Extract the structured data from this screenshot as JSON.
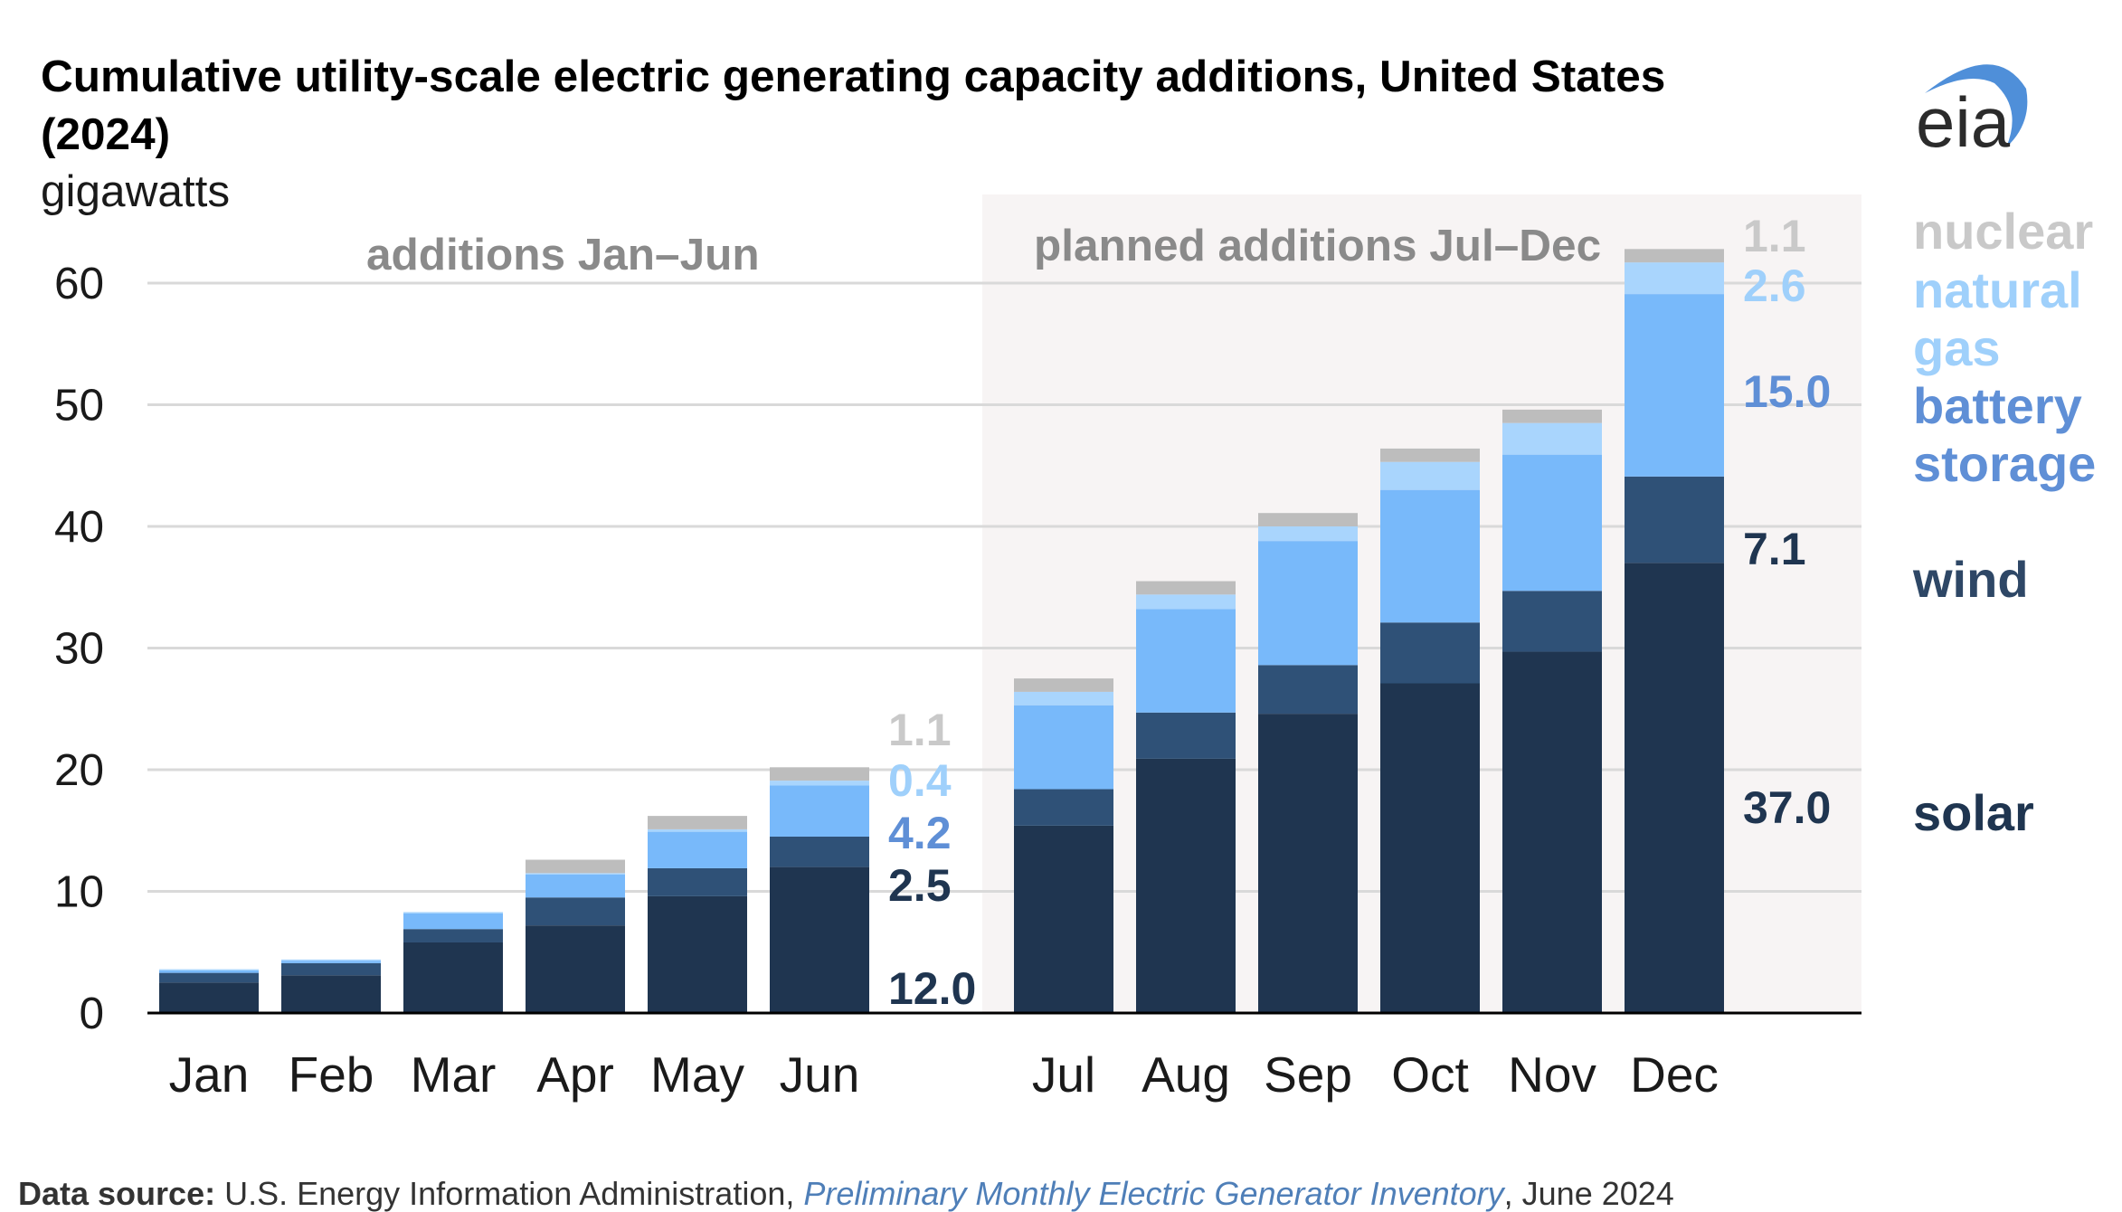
{
  "title_line1": "Cumulative utility-scale electric generating capacity additions, United States",
  "title_line2": "(2024)",
  "unit_label": "gigawatts",
  "logo_text": "eia",
  "section_labels": {
    "left": "additions Jan–Jun",
    "right": "planned additions Jul–Dec"
  },
  "source": {
    "prefix": "Data source:",
    "text1": " U.S. Energy Information Administration, ",
    "italic": "Preliminary Monthly Electric Generator Inventory",
    "text2": ", June 2024"
  },
  "colors": {
    "solar": "#1f3550",
    "wind": "#2f5177",
    "battery_storage": "#78b9fa",
    "natural_gas": "#a9d5fd",
    "nuclear": "#bdbdbd",
    "planned_shade": "#f7f4f4",
    "gridline": "#d9d9d9",
    "axis": "#000000"
  },
  "legend": [
    {
      "lines": [
        "nuclear"
      ],
      "color": "#c9c9c9"
    },
    {
      "lines": [
        "natural",
        "gas"
      ],
      "color": "#9fd0fb"
    },
    {
      "lines": [
        "battery",
        "storage"
      ],
      "color": "#5f8fd6"
    },
    {
      "lines": [
        "wind"
      ],
      "color": "#2e4766"
    },
    {
      "lines": [
        "solar"
      ],
      "color": "#1f3550"
    }
  ],
  "chart_data": {
    "type": "bar",
    "stacked": true,
    "title": "Cumulative utility-scale electric generating capacity additions, United States (2024)",
    "ylabel": "gigawatts",
    "ylim": [
      0,
      65
    ],
    "yticks": [
      0,
      10,
      20,
      30,
      40,
      50,
      60
    ],
    "grid": true,
    "categories": [
      "Jan",
      "Feb",
      "Mar",
      "Apr",
      "May",
      "Jun",
      "Jul",
      "Aug",
      "Sep",
      "Oct",
      "Nov",
      "Dec"
    ],
    "series": [
      {
        "name": "solar",
        "values": [
          2.5,
          3.1,
          5.8,
          7.2,
          9.6,
          12.0,
          15.4,
          20.9,
          24.6,
          27.1,
          29.7,
          37.0
        ]
      },
      {
        "name": "wind",
        "values": [
          0.8,
          1.0,
          1.1,
          2.3,
          2.3,
          2.5,
          3.0,
          3.8,
          4.0,
          5.0,
          5.0,
          7.1
        ]
      },
      {
        "name": "battery storage",
        "values": [
          0.2,
          0.2,
          1.3,
          1.9,
          3.0,
          4.2,
          6.9,
          8.5,
          10.2,
          10.9,
          11.2,
          15.0
        ]
      },
      {
        "name": "natural gas",
        "values": [
          0.1,
          0.1,
          0.1,
          0.1,
          0.2,
          0.4,
          1.1,
          1.2,
          1.2,
          2.3,
          2.6,
          2.6
        ]
      },
      {
        "name": "nuclear",
        "values": [
          0,
          0,
          0,
          1.1,
          1.1,
          1.1,
          1.1,
          1.1,
          1.1,
          1.1,
          1.1,
          1.1
        ]
      }
    ],
    "annotations": {
      "Jun": [
        "12.0",
        "2.5",
        "4.2",
        "0.4",
        "1.1"
      ],
      "Dec": [
        "37.0",
        "7.1",
        "15.0",
        "2.6",
        "1.1"
      ]
    }
  }
}
